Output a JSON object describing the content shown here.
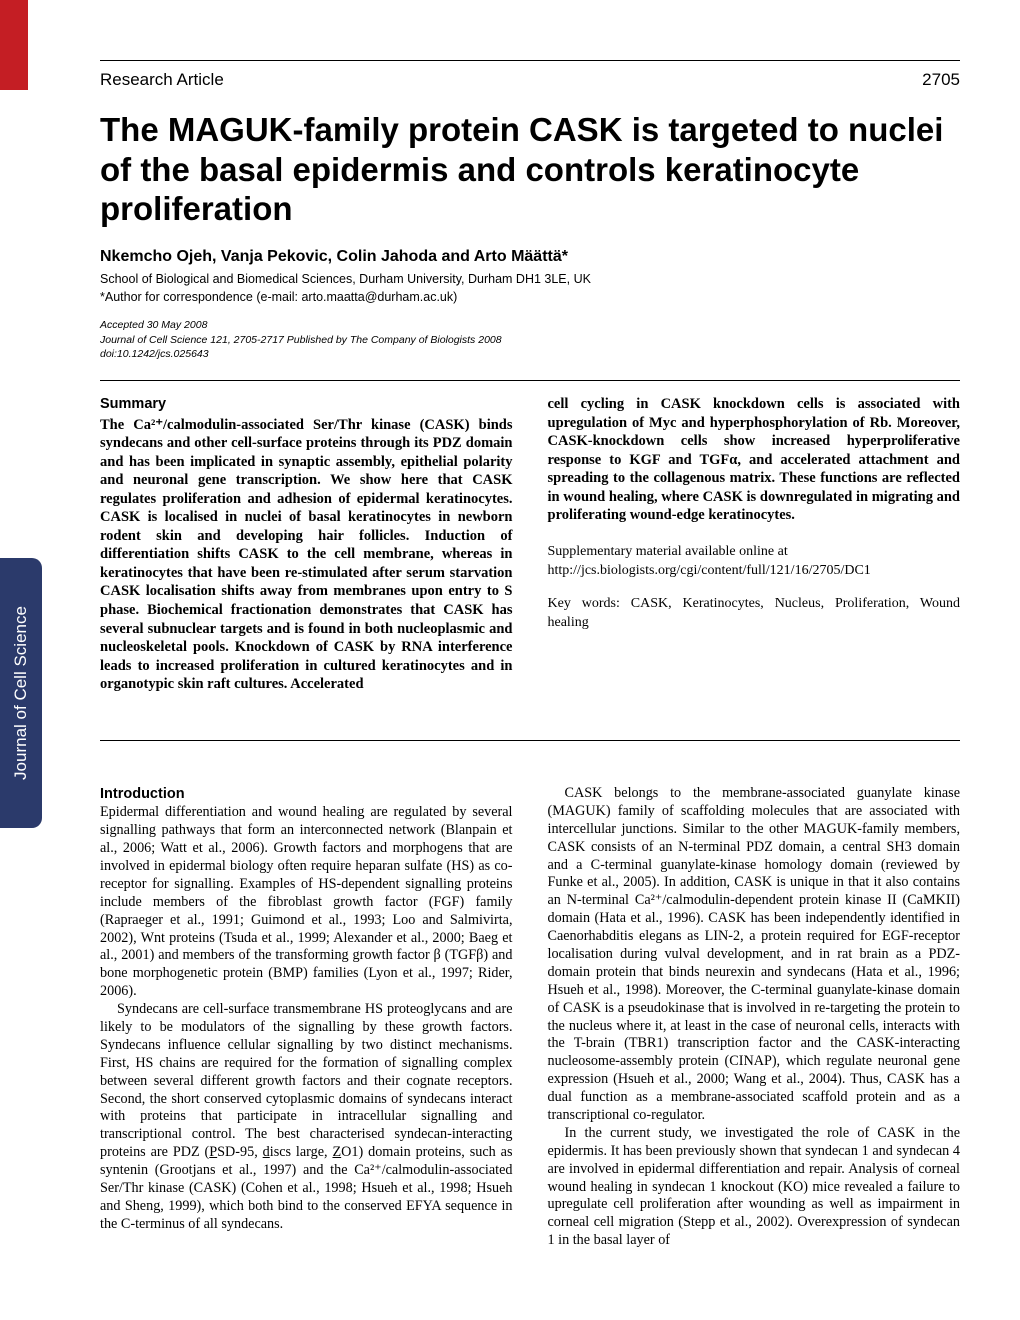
{
  "header": {
    "section": "Research Article",
    "page": "2705"
  },
  "title": "The MAGUK-family protein CASK is targeted to nuclei of the basal epidermis and controls keratinocyte proliferation",
  "authors": "Nkemcho Ojeh, Vanja Pekovic, Colin Jahoda and Arto Määttä*",
  "affiliation": "School of Biological and Biomedical Sciences, Durham University, Durham DH1 3LE, UK",
  "correspondence": "*Author for correspondence (e-mail: arto.maatta@durham.ac.uk)",
  "meta": {
    "accepted": "Accepted 30 May 2008",
    "journal": "Journal of Cell Science 121, 2705-2717 Published by The Company of Biologists 2008",
    "doi": "doi:10.1242/jcs.025643"
  },
  "spine": "Journal of Cell Science",
  "summary": {
    "heading": "Summary",
    "left": "The Ca²⁺/calmodulin-associated Ser/Thr kinase (CASK) binds syndecans and other cell-surface proteins through its PDZ domain and has been implicated in synaptic assembly, epithelial polarity and neuronal gene transcription. We show here that CASK regulates proliferation and adhesion of epidermal keratinocytes. CASK is localised in nuclei of basal keratinocytes in newborn rodent skin and developing hair follicles. Induction of differentiation shifts CASK to the cell membrane, whereas in keratinocytes that have been re-stimulated after serum starvation CASK localisation shifts away from membranes upon entry to S phase. Biochemical fractionation demonstrates that CASK has several subnuclear targets and is found in both nucleoplasmic and nucleoskeletal pools. Knockdown of CASK by RNA interference leads to increased proliferation in cultured keratinocytes and in organotypic skin raft cultures. Accelerated",
    "right": "cell cycling in CASK knockdown cells is associated with upregulation of Myc and hyperphosphorylation of Rb. Moreover, CASK-knockdown cells show increased hyperproliferative response to KGF and TGFα, and accelerated attachment and spreading to the collagenous matrix. These functions are reflected in wound healing, where CASK is downregulated in migrating and proliferating wound-edge keratinocytes.",
    "supp1": "Supplementary material available online at",
    "supp2": "http://jcs.biologists.org/cgi/content/full/121/16/2705/DC1",
    "keywords": "Key words: CASK, Keratinocytes, Nucleus, Proliferation, Wound healing"
  },
  "intro": {
    "heading": "Introduction",
    "left_p1": "Epidermal differentiation and wound healing are regulated by several signalling pathways that form an interconnected network (Blanpain et al., 2006; Watt et al., 2006). Growth factors and morphogens that are involved in epidermal biology often require heparan sulfate (HS) as co-receptor for signalling. Examples of HS-dependent signalling proteins include members of the fibroblast growth factor (FGF) family (Rapraeger et al., 1991; Guimond et al., 1993; Loo and Salmivirta, 2002), Wnt proteins (Tsuda et al., 1999; Alexander et al., 2000; Baeg et al., 2001) and members of the transforming growth factor β (TGFβ) and bone morphogenetic protein (BMP) families (Lyon et al., 1997; Rider, 2006).",
    "left_p2_a": "Syndecans are cell-surface transmembrane HS proteoglycans and are likely to be modulators of the signalling by these growth factors. Syndecans influence cellular signalling by two distinct mechanisms. First, HS chains are required for the formation of signalling complex between several different growth factors and their cognate receptors. Second, the short conserved cytoplasmic domains of syndecans interact with proteins that participate in intracellular signalling and transcriptional control. The best characterised syndecan-interacting proteins are PDZ (",
    "left_p2_b": "SD-95, ",
    "left_p2_c": "iscs large, ",
    "left_p2_d": "O1) domain proteins, such as syntenin (Grootjans et al., 1997) and the Ca²⁺/calmodulin-associated Ser/Thr kinase (CASK) (Cohen et al., 1998; Hsueh et al., 1998; Hsueh and Sheng, 1999), which both bind to the conserved EFYA sequence in the C-terminus of all syndecans.",
    "right_p1": "CASK belongs to the membrane-associated guanylate kinase (MAGUK) family of scaffolding molecules that are associated with intercellular junctions. Similar to the other MAGUK-family members, CASK consists of an N-terminal PDZ domain, a central SH3 domain and a C-terminal guanylate-kinase homology domain (reviewed by Funke et al., 2005). In addition, CASK is unique in that it also contains an N-terminal Ca²⁺/calmodulin-dependent protein kinase II (CaMKII) domain (Hata et al., 1996). CASK has been independently identified in Caenorhabditis elegans as LIN-2, a protein required for EGF-receptor localisation during vulval development, and in rat brain as a PDZ-domain protein that binds neurexin and syndecans (Hata et al., 1996; Hsueh et al., 1998). Moreover, the C-terminal guanylate-kinase domain of CASK is a pseudokinase that is involved in re-targeting the protein to the nucleus where it, at least in the case of neuronal cells, interacts with the T-brain (TBR1) transcription factor and the CASK-interacting nucleosome-assembly protein (CINAP), which regulate neuronal gene expression (Hsueh et al., 2000; Wang et al., 2004). Thus, CASK has a dual function as a membrane-associated scaffold protein and as a transcriptional co-regulator.",
    "right_p2": "In the current study, we investigated the role of CASK in the epidermis. It has been previously shown that syndecan 1 and syndecan 4 are involved in epidermal differentiation and repair. Analysis of corneal wound healing in syndecan 1 knockout (KO) mice revealed a failure to upregulate cell proliferation after wounding as well as impairment in corneal cell migration (Stepp et al., 2002). Overexpression of syndecan 1 in the basal layer of"
  },
  "colors": {
    "red_bar": "#c41e24",
    "spine": "#2b3a6b"
  }
}
